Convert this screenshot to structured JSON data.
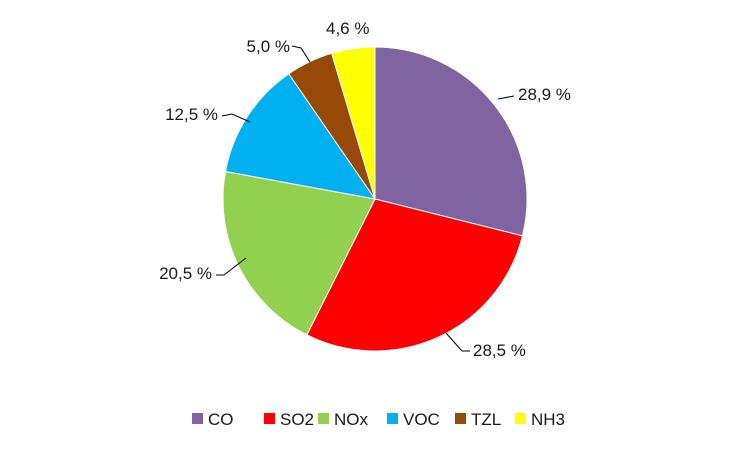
{
  "chart_data": {
    "type": "pie",
    "categories": [
      "CO",
      "SO2",
      "NOx",
      "VOC",
      "TZL",
      "NH3"
    ],
    "values": [
      28.9,
      28.5,
      20.5,
      12.5,
      5.0,
      4.6
    ],
    "value_labels": [
      "28,9 %",
      "28,5 %",
      "20,5 %",
      "12,5 %",
      "5,0 %",
      "4,6 %"
    ],
    "colors": [
      "#8064A2",
      "#FF0000",
      "#92D050",
      "#00B0F0",
      "#984807",
      "#FFFF00"
    ],
    "legend_position": "bottom",
    "data_labels": "outside with leader lines"
  }
}
